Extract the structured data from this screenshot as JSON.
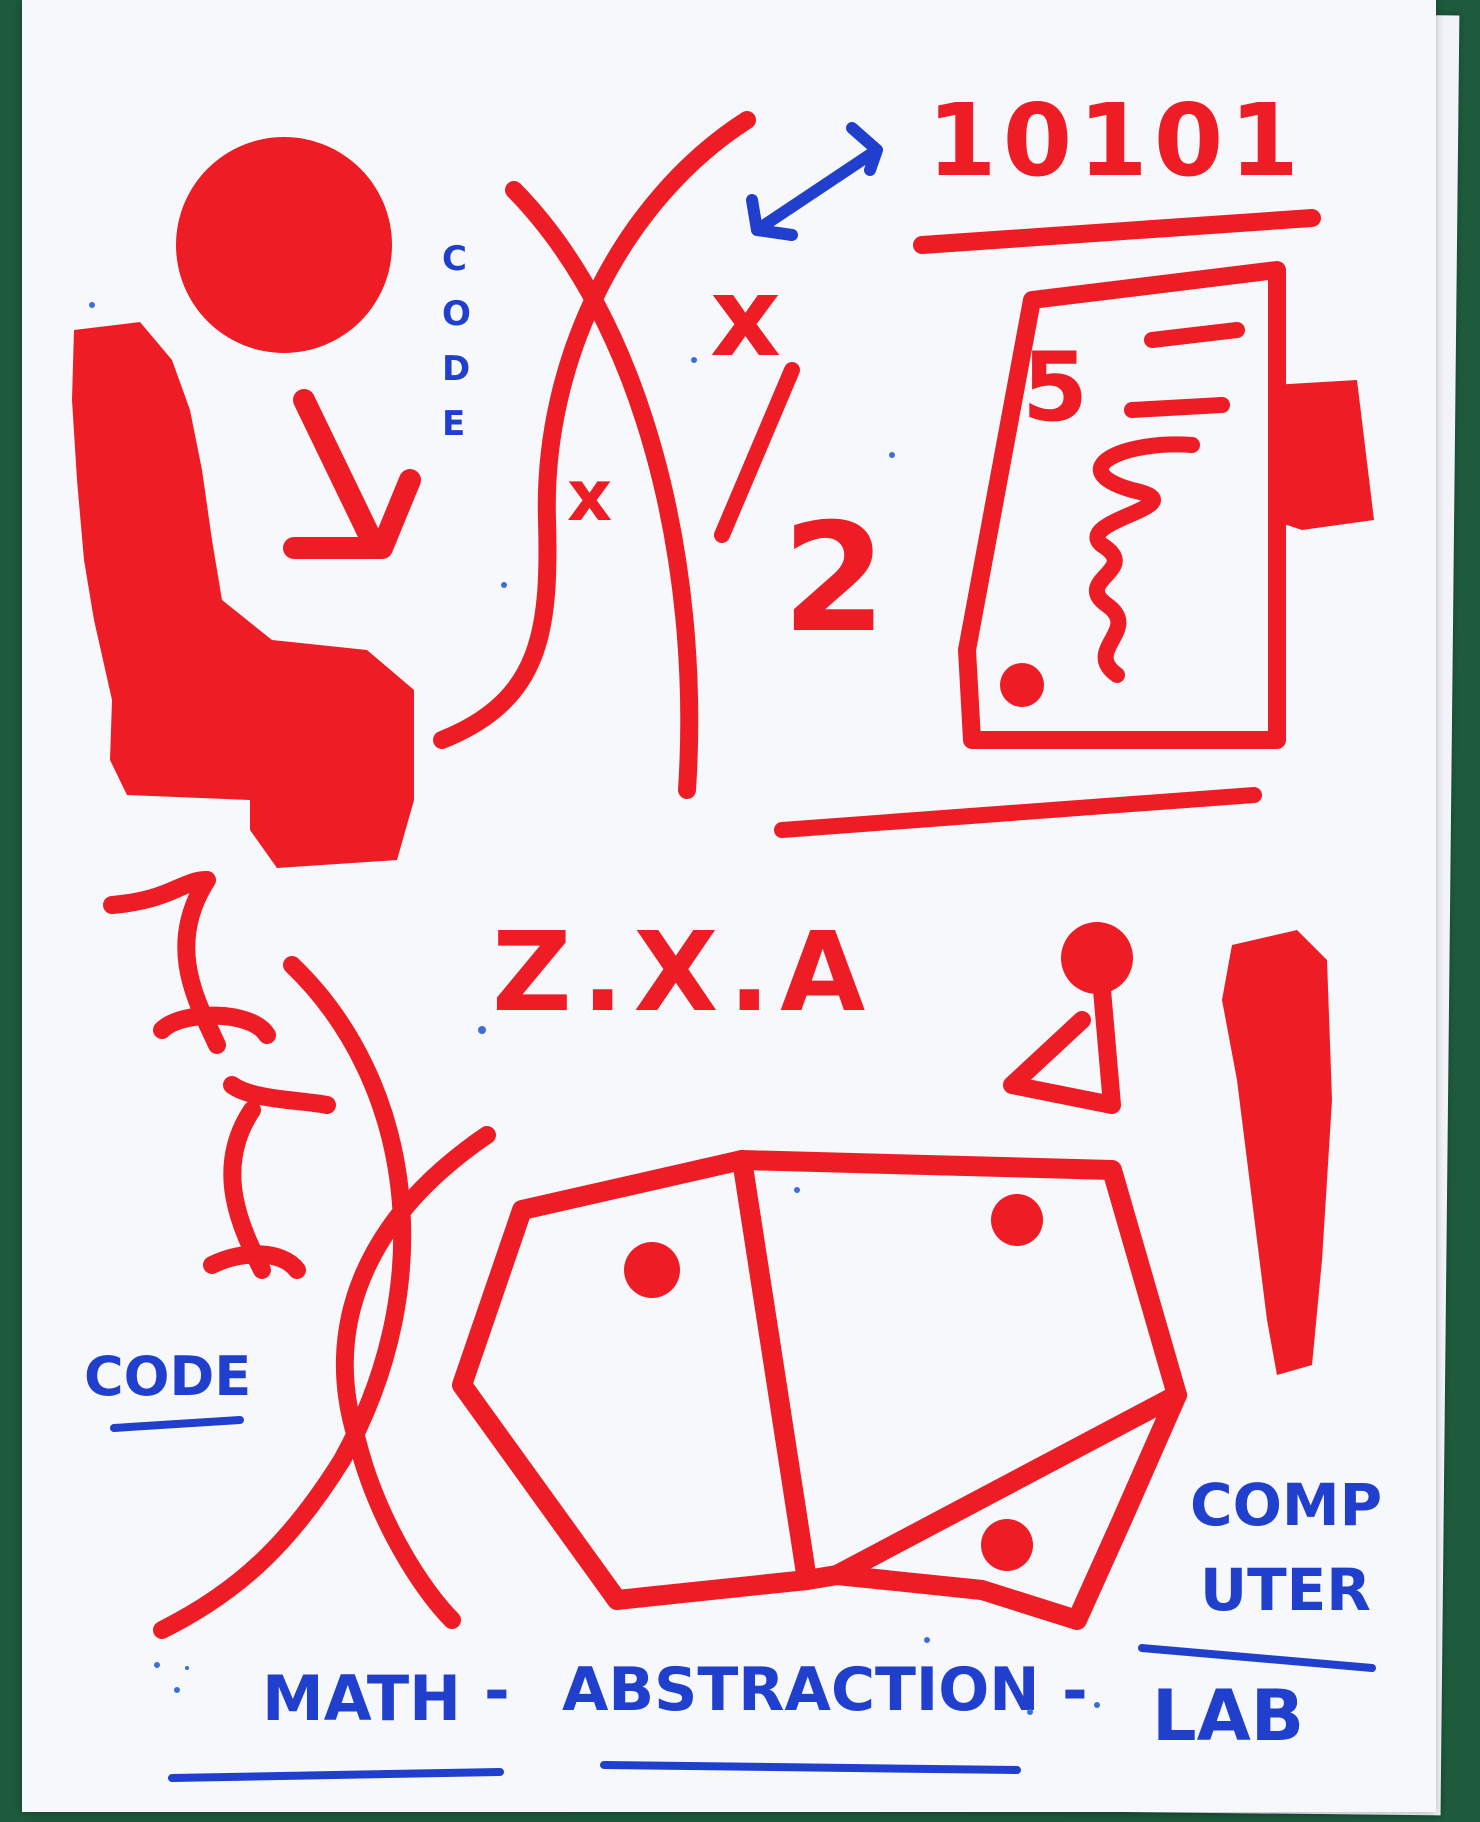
{
  "texts": {
    "binary": "10101",
    "fraction_numerator": "x",
    "fraction_denominator": "2",
    "lens_mark": "x",
    "card_number": "5",
    "equation": "Z.X.A",
    "code_vertical": [
      "C",
      "O",
      "D",
      "E"
    ],
    "code_left": "CODE",
    "computer_line1": "COMP",
    "computer_line2": "UTER",
    "lab": "LAB",
    "math": "MATH",
    "abstraction": "ABSTRACTION",
    "dash": "-"
  },
  "colors": {
    "paper": "#f7f8fc",
    "table": "#1e5a3c",
    "red_ink": "#ee1c24",
    "blue_ink": "#1f3fcc"
  }
}
